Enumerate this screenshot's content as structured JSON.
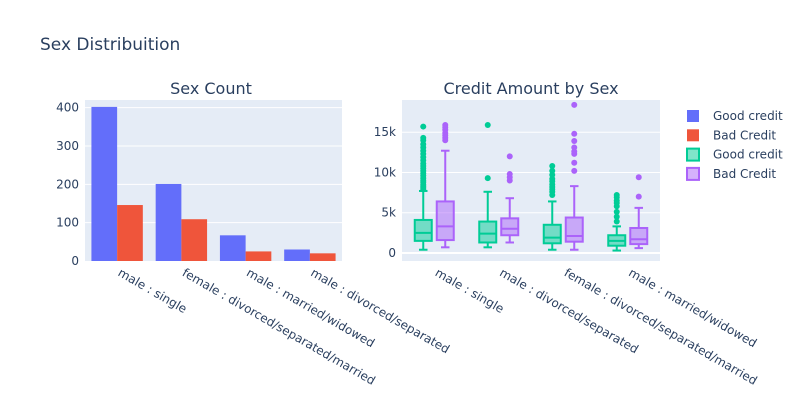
{
  "figure": {
    "title": "Sex Distribuition"
  },
  "colors": {
    "good_bar": "#636efa",
    "bad_bar": "#ef553b",
    "good_box": "#00cc96",
    "bad_box": "#ab63fa",
    "plot_bg": "#e5ecf6",
    "grid": "#ffffff",
    "text": "#2a3f5f"
  },
  "legend": {
    "placement": "right",
    "items": [
      {
        "label": "Good credit",
        "kind": "bar",
        "color": "#636efa"
      },
      {
        "label": "Bad Credit",
        "kind": "bar",
        "color": "#ef553b"
      },
      {
        "label": "Good credit",
        "kind": "box",
        "color": "#00cc96"
      },
      {
        "label": "Bad Credit",
        "kind": "box",
        "color": "#ab63fa"
      }
    ]
  },
  "chart_data": [
    {
      "type": "bar",
      "title": "Sex Count",
      "categories": [
        "male : single",
        "female : divorced/separated/married",
        "male : married/widowed",
        "male : divorced/separated"
      ],
      "series": [
        {
          "name": "Good credit",
          "values": [
            402,
            201,
            67,
            30
          ]
        },
        {
          "name": "Bad Credit",
          "values": [
            146,
            109,
            25,
            20
          ]
        }
      ],
      "ylim": [
        0,
        420
      ],
      "yticks": [
        0,
        100,
        200,
        300,
        400
      ],
      "grid": true
    },
    {
      "type": "box",
      "title": "Credit Amount by Sex",
      "categories": [
        "male : single",
        "male : divorced/separated",
        "female : divorced/separated/married",
        "male : married/widowed"
      ],
      "series": [
        {
          "name": "Good credit",
          "boxes": [
            {
              "min": 400,
              "q1": 1500,
              "median": 2500,
              "q3": 4100,
              "max": 7700,
              "outliers": [
                7900,
                8100,
                8300,
                8500,
                8800,
                9000,
                9300,
                9600,
                9900,
                10200,
                10500,
                10800,
                11100,
                11500,
                11900,
                12300,
                12700,
                13100,
                13500,
                14000,
                14300,
                15700
              ]
            },
            {
              "min": 700,
              "q1": 1300,
              "median": 2400,
              "q3": 3900,
              "max": 7600,
              "outliers": [
                9300,
                15900
              ]
            },
            {
              "min": 400,
              "q1": 1200,
              "median": 1900,
              "q3": 3500,
              "max": 6400,
              "outliers": [
                7200,
                7600,
                7900,
                8200,
                8500,
                8900,
                9200,
                9700,
                10200,
                10800
              ]
            },
            {
              "min": 300,
              "q1": 900,
              "median": 1500,
              "q3": 2200,
              "max": 3300,
              "outliers": [
                3900,
                4500,
                5100,
                5800,
                6200,
                6500,
                6900,
                7200
              ]
            }
          ]
        },
        {
          "name": "Bad Credit",
          "boxes": [
            {
              "min": 700,
              "q1": 1600,
              "median": 3300,
              "q3": 6400,
              "max": 12700,
              "outliers": [
                14000,
                14300,
                14600,
                14900,
                15300,
                15600,
                15900
              ]
            },
            {
              "min": 1300,
              "q1": 2200,
              "median": 3000,
              "q3": 4300,
              "max": 6800,
              "outliers": [
                9000,
                9400,
                9800,
                12000
              ]
            },
            {
              "min": 400,
              "q1": 1400,
              "median": 2100,
              "q3": 4400,
              "max": 8300,
              "outliers": [
                10200,
                11200,
                12300,
                12600,
                13100,
                13900,
                14800,
                18400
              ]
            },
            {
              "min": 600,
              "q1": 1100,
              "median": 1700,
              "q3": 3100,
              "max": 5600,
              "outliers": [
                7000,
                9400
              ]
            }
          ]
        }
      ],
      "ylim": [
        -1000,
        19000
      ],
      "yticks": [
        0,
        5000,
        10000,
        15000
      ],
      "ytick_labels": [
        "0",
        "5k",
        "10k",
        "15k"
      ],
      "grid": true
    }
  ]
}
